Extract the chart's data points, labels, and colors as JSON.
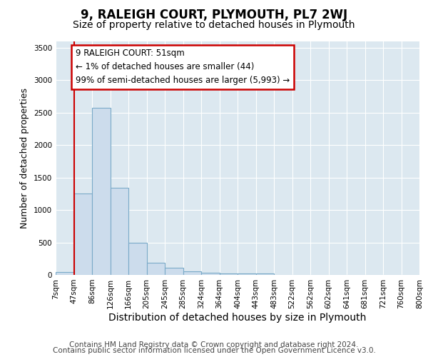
{
  "title": "9, RALEIGH COURT, PLYMOUTH, PL7 2WJ",
  "subtitle": "Size of property relative to detached houses in Plymouth",
  "xlabel": "Distribution of detached houses by size in Plymouth",
  "ylabel": "Number of detached properties",
  "bin_labels": [
    "7sqm",
    "47sqm",
    "86sqm",
    "126sqm",
    "166sqm",
    "205sqm",
    "245sqm",
    "285sqm",
    "324sqm",
    "364sqm",
    "404sqm",
    "443sqm",
    "483sqm",
    "522sqm",
    "562sqm",
    "602sqm",
    "641sqm",
    "681sqm",
    "721sqm",
    "760sqm",
    "800sqm"
  ],
  "bar_heights": [
    44,
    1250,
    2570,
    1340,
    500,
    190,
    115,
    55,
    35,
    25,
    25,
    25,
    0,
    0,
    0,
    0,
    0,
    0,
    0,
    0
  ],
  "bar_color": "#ccdcec",
  "bar_edge_color": "#7aaac8",
  "bar_edge_width": 0.8,
  "property_line_color": "#cc0000",
  "property_line_bin": 1,
  "annotation_text": "9 RALEIGH COURT: 51sqm\n← 1% of detached houses are smaller (44)\n99% of semi-detached houses are larger (5,993) →",
  "annotation_box_color": "#ffffff",
  "annotation_box_edge_color": "#cc0000",
  "ylim": [
    0,
    3600
  ],
  "figure_bg": "#ffffff",
  "axes_bg": "#dce8f0",
  "grid_color": "#ffffff",
  "footer_line1": "Contains HM Land Registry data © Crown copyright and database right 2024.",
  "footer_line2": "Contains public sector information licensed under the Open Government Licence v3.0.",
  "title_fontsize": 12,
  "subtitle_fontsize": 10,
  "ylabel_fontsize": 9,
  "xlabel_fontsize": 10,
  "footer_fontsize": 7.5
}
